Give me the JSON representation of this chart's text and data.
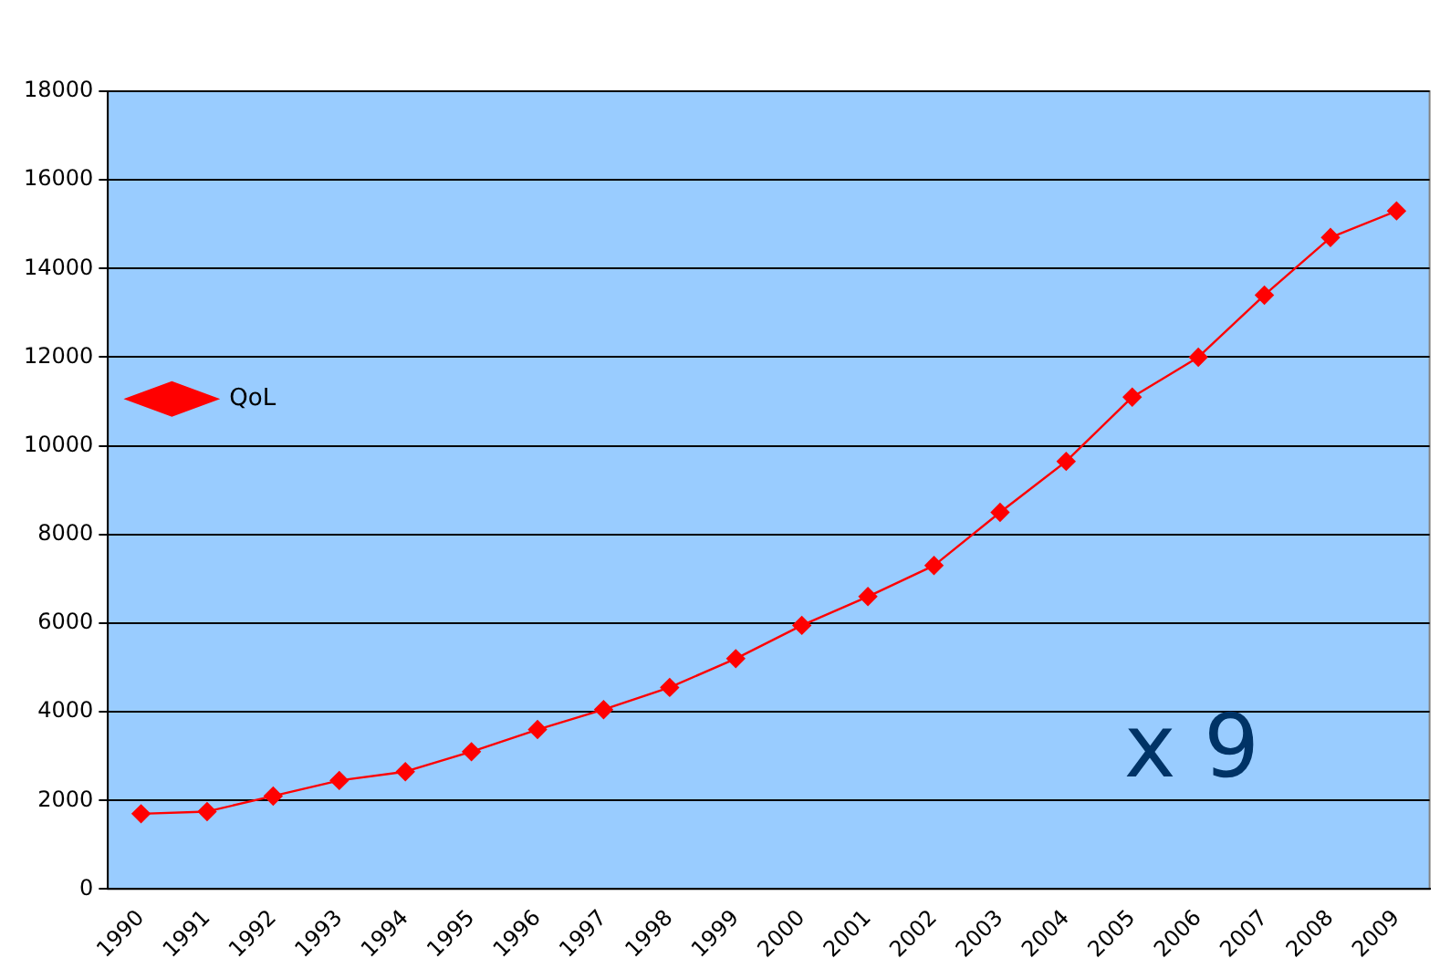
{
  "chart_data": {
    "type": "line",
    "categories": [
      "1990",
      "1991",
      "1992",
      "1993",
      "1994",
      "1995",
      "1996",
      "1997",
      "1998",
      "1999",
      "2000",
      "2001",
      "2002",
      "2003",
      "2004",
      "2005",
      "2006",
      "2007",
      "2008",
      "2009"
    ],
    "series": [
      {
        "name": "QoL",
        "color": "#ff0000",
        "values": [
          1700,
          1750,
          2100,
          2450,
          2650,
          3100,
          3600,
          4050,
          4550,
          5200,
          5950,
          6600,
          7300,
          8500,
          9650,
          11100,
          12000,
          13400,
          14700,
          15300
        ]
      }
    ],
    "ylim": [
      0,
      18000
    ],
    "yticks": [
      0,
      2000,
      4000,
      6000,
      8000,
      10000,
      12000,
      14000,
      16000,
      18000
    ],
    "grid": "y",
    "legend": "top",
    "marker": "diamond",
    "line_style": "solid",
    "annotations": [
      "x 9"
    ]
  }
}
